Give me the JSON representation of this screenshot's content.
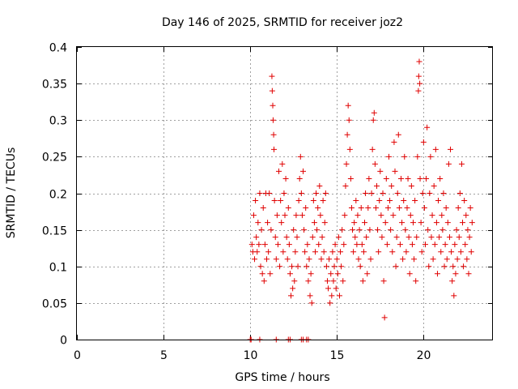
{
  "chart_data": {
    "type": "scatter",
    "title": "Day 146 of 2025, SRMTID for receiver joz2",
    "xlabel": "GPS time / hours",
    "ylabel": "SRMTID / TECUs",
    "xlim": [
      0,
      24
    ],
    "ylim": [
      0,
      0.4
    ],
    "x_ticks": [
      0,
      5,
      10,
      15,
      20
    ],
    "x_tick_labels": [
      "0",
      "5",
      "10",
      "15",
      "20"
    ],
    "y_ticks": [
      0,
      0.05,
      0.1,
      0.15,
      0.2,
      0.25,
      0.3,
      0.35,
      0.4
    ],
    "y_tick_labels": [
      "0",
      "0.05",
      "0.1",
      "0.15",
      "0.2",
      "0.25",
      "0.3",
      "0.35",
      "0.4"
    ],
    "grid": true,
    "marker": "+",
    "color": "#e00000",
    "series": [
      {
        "name": "SRMTID",
        "points": [
          [
            10.0,
            0.0
          ],
          [
            10.05,
            0.0
          ],
          [
            10.55,
            0.0
          ],
          [
            11.5,
            0.0
          ],
          [
            12.2,
            0.0
          ],
          [
            12.3,
            0.0
          ],
          [
            12.95,
            0.0
          ],
          [
            13.05,
            0.0
          ],
          [
            13.25,
            0.0
          ],
          [
            13.35,
            0.0
          ],
          [
            10.1,
            0.13
          ],
          [
            10.15,
            0.12
          ],
          [
            10.2,
            0.17
          ],
          [
            10.25,
            0.11
          ],
          [
            10.3,
            0.19
          ],
          [
            10.35,
            0.14
          ],
          [
            10.4,
            0.12
          ],
          [
            10.45,
            0.16
          ],
          [
            10.5,
            0.13
          ],
          [
            10.55,
            0.2
          ],
          [
            10.6,
            0.1
          ],
          [
            10.65,
            0.15
          ],
          [
            10.7,
            0.09
          ],
          [
            10.75,
            0.18
          ],
          [
            10.8,
            0.08
          ],
          [
            10.85,
            0.13
          ],
          [
            10.9,
            0.2
          ],
          [
            10.95,
            0.11
          ],
          [
            11.0,
            0.16
          ],
          [
            11.05,
            0.12
          ],
          [
            11.1,
            0.2
          ],
          [
            11.15,
            0.09
          ],
          [
            11.2,
            0.15
          ],
          [
            11.25,
            0.36
          ],
          [
            11.27,
            0.34
          ],
          [
            11.3,
            0.32
          ],
          [
            11.32,
            0.3
          ],
          [
            11.35,
            0.28
          ],
          [
            11.37,
            0.26
          ],
          [
            11.4,
            0.19
          ],
          [
            11.45,
            0.14
          ],
          [
            11.5,
            0.11
          ],
          [
            11.55,
            0.17
          ],
          [
            11.6,
            0.13
          ],
          [
            11.65,
            0.23
          ],
          [
            11.7,
            0.1
          ],
          [
            11.75,
            0.19
          ],
          [
            11.8,
            0.16
          ],
          [
            11.85,
            0.24
          ],
          [
            11.9,
            0.12
          ],
          [
            11.95,
            0.2
          ],
          [
            12.0,
            0.17
          ],
          [
            12.05,
            0.22
          ],
          [
            12.1,
            0.14
          ],
          [
            12.15,
            0.11
          ],
          [
            12.2,
            0.18
          ],
          [
            12.25,
            0.13
          ],
          [
            12.3,
            0.09
          ],
          [
            12.35,
            0.06
          ],
          [
            12.4,
            0.1
          ],
          [
            12.45,
            0.07
          ],
          [
            12.5,
            0.15
          ],
          [
            12.55,
            0.08
          ],
          [
            12.6,
            0.12
          ],
          [
            12.65,
            0.17
          ],
          [
            12.7,
            0.14
          ],
          [
            12.75,
            0.1
          ],
          [
            12.8,
            0.19
          ],
          [
            12.85,
            0.22
          ],
          [
            12.9,
            0.25
          ],
          [
            12.95,
            0.2
          ],
          [
            13.0,
            0.17
          ],
          [
            13.05,
            0.23
          ],
          [
            13.1,
            0.15
          ],
          [
            13.15,
            0.12
          ],
          [
            13.2,
            0.18
          ],
          [
            13.25,
            0.1
          ],
          [
            13.3,
            0.13
          ],
          [
            13.35,
            0.08
          ],
          [
            13.4,
            0.11
          ],
          [
            13.45,
            0.06
          ],
          [
            13.5,
            0.09
          ],
          [
            13.55,
            0.05
          ],
          [
            13.6,
            0.14
          ],
          [
            13.65,
            0.19
          ],
          [
            13.7,
            0.16
          ],
          [
            13.75,
            0.12
          ],
          [
            13.8,
            0.2
          ],
          [
            13.85,
            0.15
          ],
          [
            13.9,
            0.18
          ],
          [
            13.95,
            0.13
          ],
          [
            14.0,
            0.21
          ],
          [
            14.05,
            0.17
          ],
          [
            14.1,
            0.11
          ],
          [
            14.15,
            0.14
          ],
          [
            14.2,
            0.19
          ],
          [
            14.25,
            0.12
          ],
          [
            14.3,
            0.16
          ],
          [
            14.35,
            0.2
          ],
          [
            14.4,
            0.1
          ],
          [
            14.45,
            0.08
          ],
          [
            14.5,
            0.07
          ],
          [
            14.55,
            0.11
          ],
          [
            14.6,
            0.05
          ],
          [
            14.65,
            0.09
          ],
          [
            14.7,
            0.06
          ],
          [
            14.75,
            0.12
          ],
          [
            14.8,
            0.08
          ],
          [
            14.85,
            0.1
          ],
          [
            14.9,
            0.13
          ],
          [
            14.95,
            0.07
          ],
          [
            15.0,
            0.11
          ],
          [
            15.05,
            0.09
          ],
          [
            15.1,
            0.14
          ],
          [
            15.15,
            0.06
          ],
          [
            15.2,
            0.12
          ],
          [
            15.25,
            0.1
          ],
          [
            15.3,
            0.15
          ],
          [
            15.35,
            0.08
          ],
          [
            15.4,
            0.13
          ],
          [
            15.45,
            0.17
          ],
          [
            15.5,
            0.21
          ],
          [
            15.55,
            0.24
          ],
          [
            15.6,
            0.28
          ],
          [
            15.65,
            0.32
          ],
          [
            15.7,
            0.3
          ],
          [
            15.75,
            0.26
          ],
          [
            15.8,
            0.22
          ],
          [
            15.85,
            0.18
          ],
          [
            15.9,
            0.15
          ],
          [
            15.95,
            0.12
          ],
          [
            16.0,
            0.16
          ],
          [
            16.05,
            0.14
          ],
          [
            16.1,
            0.19
          ],
          [
            16.15,
            0.13
          ],
          [
            16.2,
            0.17
          ],
          [
            16.25,
            0.11
          ],
          [
            16.3,
            0.15
          ],
          [
            16.35,
            0.1
          ],
          [
            16.4,
            0.18
          ],
          [
            16.45,
            0.13
          ],
          [
            16.5,
            0.08
          ],
          [
            16.55,
            0.12
          ],
          [
            16.6,
            0.16
          ],
          [
            16.65,
            0.2
          ],
          [
            16.7,
            0.14
          ],
          [
            16.75,
            0.09
          ],
          [
            16.8,
            0.18
          ],
          [
            16.85,
            0.22
          ],
          [
            16.9,
            0.15
          ],
          [
            16.95,
            0.11
          ],
          [
            17.0,
            0.2
          ],
          [
            17.05,
            0.26
          ],
          [
            17.1,
            0.3
          ],
          [
            17.15,
            0.31
          ],
          [
            17.2,
            0.24
          ],
          [
            17.25,
            0.18
          ],
          [
            17.3,
            0.21
          ],
          [
            17.35,
            0.15
          ],
          [
            17.4,
            0.12
          ],
          [
            17.45,
            0.19
          ],
          [
            17.5,
            0.23
          ],
          [
            17.55,
            0.17
          ],
          [
            17.6,
            0.14
          ],
          [
            17.65,
            0.2
          ],
          [
            17.7,
            0.08
          ],
          [
            17.75,
            0.03
          ],
          [
            17.8,
            0.16
          ],
          [
            17.85,
            0.22
          ],
          [
            17.9,
            0.13
          ],
          [
            17.95,
            0.18
          ],
          [
            18.0,
            0.25
          ],
          [
            18.05,
            0.19
          ],
          [
            18.1,
            0.15
          ],
          [
            18.15,
            0.21
          ],
          [
            18.2,
            0.12
          ],
          [
            18.25,
            0.17
          ],
          [
            18.3,
            0.27
          ],
          [
            18.35,
            0.23
          ],
          [
            18.4,
            0.1
          ],
          [
            18.45,
            0.14
          ],
          [
            18.5,
            0.2
          ],
          [
            18.55,
            0.28
          ],
          [
            18.6,
            0.18
          ],
          [
            18.65,
            0.13
          ],
          [
            18.7,
            0.22
          ],
          [
            18.75,
            0.16
          ],
          [
            18.8,
            0.11
          ],
          [
            18.85,
            0.19
          ],
          [
            18.9,
            0.25
          ],
          [
            18.95,
            0.15
          ],
          [
            19.0,
            0.12
          ],
          [
            19.05,
            0.18
          ],
          [
            19.1,
            0.22
          ],
          [
            19.15,
            0.14
          ],
          [
            19.2,
            0.09
          ],
          [
            19.25,
            0.17
          ],
          [
            19.3,
            0.21
          ],
          [
            19.35,
            0.13
          ],
          [
            19.4,
            0.16
          ],
          [
            19.45,
            0.11
          ],
          [
            19.5,
            0.19
          ],
          [
            19.55,
            0.08
          ],
          [
            19.6,
            0.14
          ],
          [
            19.65,
            0.25
          ],
          [
            19.7,
            0.34
          ],
          [
            19.72,
            0.36
          ],
          [
            19.75,
            0.38
          ],
          [
            19.78,
            0.35
          ],
          [
            19.8,
            0.22
          ],
          [
            19.85,
            0.16
          ],
          [
            19.9,
            0.12
          ],
          [
            19.95,
            0.2
          ],
          [
            20.0,
            0.27
          ],
          [
            20.05,
            0.18
          ],
          [
            20.1,
            0.13
          ],
          [
            20.15,
            0.22
          ],
          [
            20.2,
            0.29
          ],
          [
            20.25,
            0.15
          ],
          [
            20.3,
            0.1
          ],
          [
            20.35,
            0.2
          ],
          [
            20.4,
            0.25
          ],
          [
            20.45,
            0.14
          ],
          [
            20.5,
            0.17
          ],
          [
            20.55,
            0.11
          ],
          [
            20.6,
            0.21
          ],
          [
            20.65,
            0.13
          ],
          [
            20.7,
            0.26
          ],
          [
            20.75,
            0.16
          ],
          [
            20.8,
            0.09
          ],
          [
            20.85,
            0.19
          ],
          [
            20.9,
            0.14
          ],
          [
            20.95,
            0.22
          ],
          [
            21.0,
            0.12
          ],
          [
            21.05,
            0.17
          ],
          [
            21.1,
            0.15
          ],
          [
            21.15,
            0.2
          ],
          [
            21.2,
            0.1
          ],
          [
            21.25,
            0.13
          ],
          [
            21.3,
            0.18
          ],
          [
            21.35,
            0.11
          ],
          [
            21.4,
            0.16
          ],
          [
            21.45,
            0.24
          ],
          [
            21.5,
            0.14
          ],
          [
            21.55,
            0.26
          ],
          [
            21.6,
            0.12
          ],
          [
            21.65,
            0.08
          ],
          [
            21.7,
            0.1
          ],
          [
            21.75,
            0.06
          ],
          [
            21.8,
            0.13
          ],
          [
            21.85,
            0.09
          ],
          [
            21.9,
            0.15
          ],
          [
            21.95,
            0.11
          ],
          [
            22.0,
            0.18
          ],
          [
            22.05,
            0.14
          ],
          [
            22.1,
            0.2
          ],
          [
            22.15,
            0.12
          ],
          [
            22.2,
            0.24
          ],
          [
            22.25,
            0.16
          ],
          [
            22.3,
            0.1
          ],
          [
            22.35,
            0.19
          ],
          [
            22.4,
            0.13
          ],
          [
            22.45,
            0.17
          ],
          [
            22.5,
            0.11
          ],
          [
            22.55,
            0.15
          ],
          [
            22.6,
            0.09
          ],
          [
            22.65,
            0.14
          ],
          [
            22.7,
            0.18
          ],
          [
            22.75,
            0.12
          ],
          [
            22.8,
            0.16
          ]
        ]
      }
    ]
  }
}
